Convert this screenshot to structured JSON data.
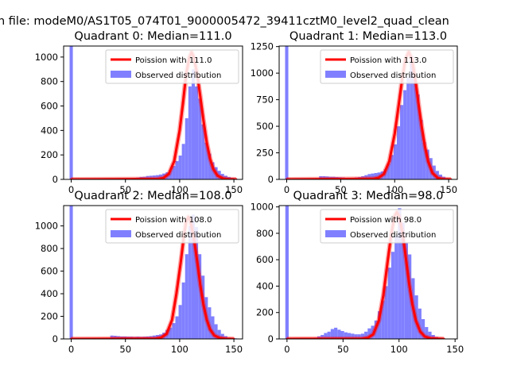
{
  "suptitle": "n file: modeM0/AS1T05_074T01_9000005472_39411cztM0_level2_quad_clean",
  "legend_labels": {
    "model": "Poission with",
    "observed": "Observed distribution"
  },
  "colors": {
    "model": "#ff0000",
    "observed": "#8080ff",
    "axis": "#000000"
  },
  "chart_data": [
    {
      "type": "bar",
      "title": "Quadrant 0: Median=111.0",
      "legend_model": "Poission with 111.0",
      "median": 111.0,
      "xlim": [
        -7,
        158
      ],
      "ylim": [
        0,
        1090
      ],
      "xticks": [
        0,
        50,
        100,
        150
      ],
      "yticks": [
        0,
        200,
        400,
        600,
        800,
        1000
      ],
      "zero_bin": 1090,
      "observed_hist": {
        "bin_width": 3,
        "bins": [
          [
            39,
            5
          ],
          [
            42,
            5
          ],
          [
            45,
            5
          ],
          [
            48,
            5
          ],
          [
            51,
            8
          ],
          [
            54,
            8
          ],
          [
            57,
            12
          ],
          [
            60,
            15
          ],
          [
            63,
            20
          ],
          [
            66,
            22
          ],
          [
            69,
            28
          ],
          [
            72,
            30
          ],
          [
            75,
            32
          ],
          [
            78,
            35
          ],
          [
            81,
            40
          ],
          [
            84,
            48
          ],
          [
            87,
            58
          ],
          [
            90,
            75
          ],
          [
            93,
            110
          ],
          [
            96,
            150
          ],
          [
            99,
            195
          ],
          [
            102,
            290
          ],
          [
            105,
            500
          ],
          [
            108,
            760
          ],
          [
            111,
            900
          ],
          [
            114,
            760
          ],
          [
            117,
            660
          ],
          [
            120,
            450
          ],
          [
            123,
            300
          ],
          [
            126,
            210
          ],
          [
            129,
            140
          ],
          [
            132,
            100
          ],
          [
            135,
            70
          ],
          [
            138,
            45
          ],
          [
            141,
            30
          ],
          [
            144,
            20
          ],
          [
            147,
            12
          ],
          [
            150,
            8
          ]
        ]
      },
      "poisson_curve": [
        [
          0,
          0
        ],
        [
          80,
          3
        ],
        [
          85,
          12
        ],
        [
          90,
          45
        ],
        [
          95,
          150
        ],
        [
          100,
          400
        ],
        [
          103,
          620
        ],
        [
          106,
          860
        ],
        [
          109,
          1000
        ],
        [
          111,
          1040
        ],
        [
          113,
          1000
        ],
        [
          116,
          870
        ],
        [
          119,
          680
        ],
        [
          122,
          480
        ],
        [
          125,
          300
        ],
        [
          128,
          170
        ],
        [
          131,
          85
        ],
        [
          135,
          30
        ],
        [
          140,
          8
        ],
        [
          145,
          2
        ],
        [
          152,
          0
        ]
      ]
    },
    {
      "type": "bar",
      "title": "Quadrant 1: Median=113.0",
      "legend_model": "Poission with 113.0",
      "median": 113.0,
      "xlim": [
        -7,
        158
      ],
      "ylim": [
        0,
        1255
      ],
      "xticks": [
        0,
        50,
        100,
        150
      ],
      "yticks": [
        0,
        250,
        500,
        750,
        1000,
        1250
      ],
      "zero_bin": 1255,
      "observed_hist": {
        "bin_width": 3,
        "bins": [
          [
            30,
            30
          ],
          [
            33,
            30
          ],
          [
            36,
            28
          ],
          [
            39,
            25
          ],
          [
            42,
            25
          ],
          [
            45,
            22
          ],
          [
            48,
            20
          ],
          [
            51,
            18
          ],
          [
            54,
            12
          ],
          [
            57,
            12
          ],
          [
            60,
            15
          ],
          [
            63,
            18
          ],
          [
            66,
            22
          ],
          [
            69,
            30
          ],
          [
            72,
            40
          ],
          [
            75,
            50
          ],
          [
            78,
            55
          ],
          [
            81,
            60
          ],
          [
            84,
            65
          ],
          [
            87,
            75
          ],
          [
            90,
            95
          ],
          [
            93,
            150
          ],
          [
            96,
            230
          ],
          [
            99,
            330
          ],
          [
            102,
            500
          ],
          [
            105,
            700
          ],
          [
            108,
            840
          ],
          [
            111,
            960
          ],
          [
            114,
            1160
          ],
          [
            117,
            980
          ],
          [
            120,
            800
          ],
          [
            123,
            560
          ],
          [
            126,
            350
          ],
          [
            129,
            280
          ],
          [
            132,
            200
          ],
          [
            135,
            130
          ],
          [
            138,
            80
          ],
          [
            141,
            45
          ],
          [
            144,
            25
          ],
          [
            147,
            12
          ],
          [
            150,
            5
          ]
        ]
      },
      "poisson_curve": [
        [
          0,
          0
        ],
        [
          80,
          5
        ],
        [
          85,
          15
        ],
        [
          90,
          50
        ],
        [
          95,
          170
        ],
        [
          100,
          430
        ],
        [
          104,
          720
        ],
        [
          107,
          950
        ],
        [
          110,
          1130
        ],
        [
          113,
          1200
        ],
        [
          116,
          1130
        ],
        [
          119,
          950
        ],
        [
          122,
          720
        ],
        [
          125,
          500
        ],
        [
          128,
          310
        ],
        [
          131,
          170
        ],
        [
          135,
          60
        ],
        [
          140,
          12
        ],
        [
          145,
          2
        ],
        [
          152,
          0
        ]
      ]
    },
    {
      "type": "bar",
      "title": "Quadrant 2: Median=108.0",
      "legend_model": "Poission with 108.0",
      "median": 108.0,
      "xlim": [
        -7,
        158
      ],
      "ylim": [
        0,
        1180
      ],
      "xticks": [
        0,
        50,
        100,
        150
      ],
      "yticks": [
        0,
        200,
        400,
        600,
        800,
        1000
      ],
      "zero_bin": 1180,
      "observed_hist": {
        "bin_width": 3,
        "bins": [
          [
            30,
            5
          ],
          [
            33,
            8
          ],
          [
            36,
            30
          ],
          [
            39,
            28
          ],
          [
            42,
            25
          ],
          [
            45,
            22
          ],
          [
            48,
            22
          ],
          [
            51,
            20
          ],
          [
            54,
            20
          ],
          [
            57,
            18
          ],
          [
            60,
            20
          ],
          [
            63,
            18
          ],
          [
            66,
            20
          ],
          [
            69,
            22
          ],
          [
            72,
            25
          ],
          [
            75,
            30
          ],
          [
            78,
            35
          ],
          [
            81,
            40
          ],
          [
            84,
            55
          ],
          [
            87,
            80
          ],
          [
            90,
            100
          ],
          [
            93,
            140
          ],
          [
            96,
            200
          ],
          [
            99,
            300
          ],
          [
            102,
            500
          ],
          [
            105,
            750
          ],
          [
            108,
            1000
          ],
          [
            111,
            1100
          ],
          [
            114,
            990
          ],
          [
            117,
            750
          ],
          [
            120,
            560
          ],
          [
            123,
            370
          ],
          [
            126,
            280
          ],
          [
            129,
            200
          ],
          [
            132,
            130
          ],
          [
            135,
            80
          ],
          [
            138,
            45
          ],
          [
            141,
            25
          ],
          [
            144,
            12
          ],
          [
            147,
            8
          ],
          [
            150,
            5
          ]
        ]
      },
      "poisson_curve": [
        [
          0,
          0
        ],
        [
          78,
          3
        ],
        [
          83,
          12
        ],
        [
          88,
          45
        ],
        [
          93,
          170
        ],
        [
          97,
          400
        ],
        [
          101,
          680
        ],
        [
          104,
          920
        ],
        [
          106,
          1040
        ],
        [
          108,
          1080
        ],
        [
          110,
          1040
        ],
        [
          113,
          900
        ],
        [
          116,
          700
        ],
        [
          119,
          480
        ],
        [
          122,
          300
        ],
        [
          125,
          170
        ],
        [
          128,
          85
        ],
        [
          132,
          30
        ],
        [
          137,
          8
        ],
        [
          142,
          2
        ],
        [
          150,
          0
        ]
      ]
    },
    {
      "type": "bar",
      "title": "Quadrant 3: Median=98.0",
      "legend_model": "Poission with 98.0",
      "median": 98.0,
      "xlim": [
        -7,
        152
      ],
      "ylim": [
        0,
        1010
      ],
      "xticks": [
        0,
        50,
        100,
        150
      ],
      "yticks": [
        0,
        200,
        400,
        600,
        800,
        1000
      ],
      "zero_bin": 1010,
      "observed_hist": {
        "bin_width": 3,
        "bins": [
          [
            21,
            8
          ],
          [
            24,
            10
          ],
          [
            27,
            20
          ],
          [
            30,
            30
          ],
          [
            33,
            45
          ],
          [
            36,
            55
          ],
          [
            39,
            75
          ],
          [
            42,
            85
          ],
          [
            45,
            70
          ],
          [
            48,
            60
          ],
          [
            51,
            50
          ],
          [
            54,
            45
          ],
          [
            57,
            40
          ],
          [
            60,
            35
          ],
          [
            63,
            35
          ],
          [
            66,
            40
          ],
          [
            69,
            55
          ],
          [
            72,
            80
          ],
          [
            75,
            100
          ],
          [
            78,
            140
          ],
          [
            81,
            210
          ],
          [
            84,
            290
          ],
          [
            87,
            400
          ],
          [
            90,
            540
          ],
          [
            93,
            660
          ],
          [
            96,
            780
          ],
          [
            99,
            990
          ],
          [
            102,
            880
          ],
          [
            105,
            730
          ],
          [
            108,
            640
          ],
          [
            111,
            460
          ],
          [
            114,
            330
          ],
          [
            117,
            230
          ],
          [
            120,
            150
          ],
          [
            123,
            90
          ],
          [
            126,
            55
          ],
          [
            129,
            30
          ],
          [
            132,
            15
          ],
          [
            135,
            8
          ],
          [
            138,
            5
          ]
        ]
      },
      "poisson_curve": [
        [
          0,
          0
        ],
        [
          67,
          2
        ],
        [
          72,
          8
        ],
        [
          77,
          35
        ],
        [
          82,
          140
        ],
        [
          86,
          330
        ],
        [
          90,
          600
        ],
        [
          93,
          790
        ],
        [
          96,
          930
        ],
        [
          98,
          960
        ],
        [
          100,
          930
        ],
        [
          103,
          810
        ],
        [
          106,
          620
        ],
        [
          109,
          420
        ],
        [
          112,
          260
        ],
        [
          115,
          140
        ],
        [
          119,
          55
        ],
        [
          123,
          18
        ],
        [
          128,
          4
        ],
        [
          140,
          0
        ]
      ]
    }
  ]
}
